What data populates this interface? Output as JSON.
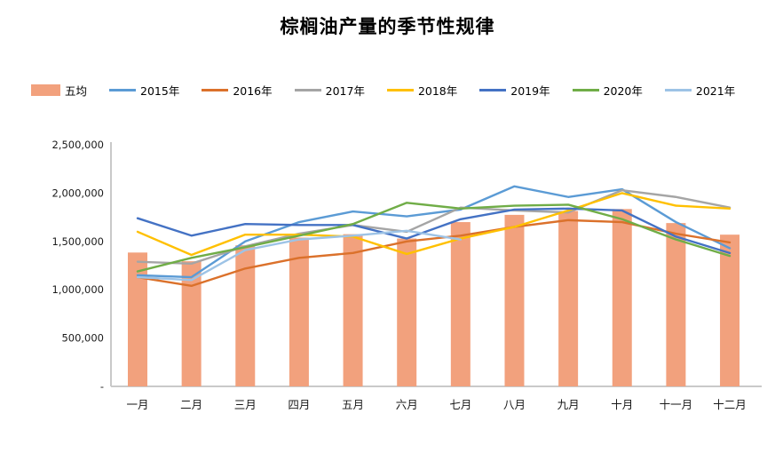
{
  "title": "棕榈油产量的季节性规律",
  "chart_data": {
    "type": "combo-bar-line",
    "title": "棕榈油产量的季节性规律",
    "categories": [
      "一月",
      "二月",
      "三月",
      "四月",
      "五月",
      "六月",
      "七月",
      "八月",
      "九月",
      "十月",
      "十一月",
      "十二月"
    ],
    "series": [
      {
        "name": "五均",
        "type": "bar",
        "color": "#F2A17D",
        "values": [
          1385000,
          1295000,
          1460000,
          1540000,
          1575000,
          1530000,
          1700000,
          1775000,
          1815000,
          1835000,
          1690000,
          1570000
        ]
      },
      {
        "name": "2015年",
        "type": "line",
        "color": "#5B9BD5",
        "values": [
          1150000,
          1130000,
          1500000,
          1700000,
          1810000,
          1760000,
          1830000,
          2070000,
          1960000,
          2040000,
          1700000,
          1430000
        ]
      },
      {
        "name": "2016年",
        "type": "line",
        "color": "#DB712B",
        "values": [
          1130000,
          1040000,
          1220000,
          1330000,
          1380000,
          1500000,
          1560000,
          1650000,
          1720000,
          1700000,
          1580000,
          1490000
        ]
      },
      {
        "name": "2017年",
        "type": "line",
        "color": "#A5A5A5",
        "values": [
          1290000,
          1270000,
          1450000,
          1580000,
          1670000,
          1600000,
          1850000,
          1820000,
          1800000,
          2030000,
          1960000,
          1850000
        ]
      },
      {
        "name": "2018年",
        "type": "line",
        "color": "#FFC000",
        "values": [
          1600000,
          1360000,
          1570000,
          1570000,
          1550000,
          1370000,
          1530000,
          1650000,
          1820000,
          2000000,
          1870000,
          1840000
        ]
      },
      {
        "name": "2019年",
        "type": "line",
        "color": "#4472C4",
        "values": [
          1740000,
          1560000,
          1680000,
          1670000,
          1670000,
          1530000,
          1730000,
          1830000,
          1840000,
          1820000,
          1550000,
          1380000
        ]
      },
      {
        "name": "2020年",
        "type": "line",
        "color": "#70AD47",
        "values": [
          1190000,
          1330000,
          1440000,
          1560000,
          1680000,
          1900000,
          1840000,
          1870000,
          1880000,
          1730000,
          1520000,
          1350000
        ]
      },
      {
        "name": "2021年",
        "type": "line",
        "color": "#9DC3E6",
        "values": [
          1130000,
          1100000,
          1410000,
          1520000,
          1560000,
          1610000,
          1520000
        ]
      }
    ],
    "ylim": [
      0,
      2500000
    ],
    "y_ticks": [
      {
        "value": 2500000,
        "label": "2,500,000"
      },
      {
        "value": 2000000,
        "label": "2,000,000"
      },
      {
        "value": 1500000,
        "label": "1,500,000"
      },
      {
        "value": 1000000,
        "label": "1,000,000"
      },
      {
        "value": 500000,
        "label": "500,000"
      },
      {
        "value": 0,
        "label": "-"
      }
    ],
    "grid": false,
    "legend_position": "top-left",
    "axis_color": "#C9C9C9",
    "tick_label_color": "#1a1a1a"
  }
}
